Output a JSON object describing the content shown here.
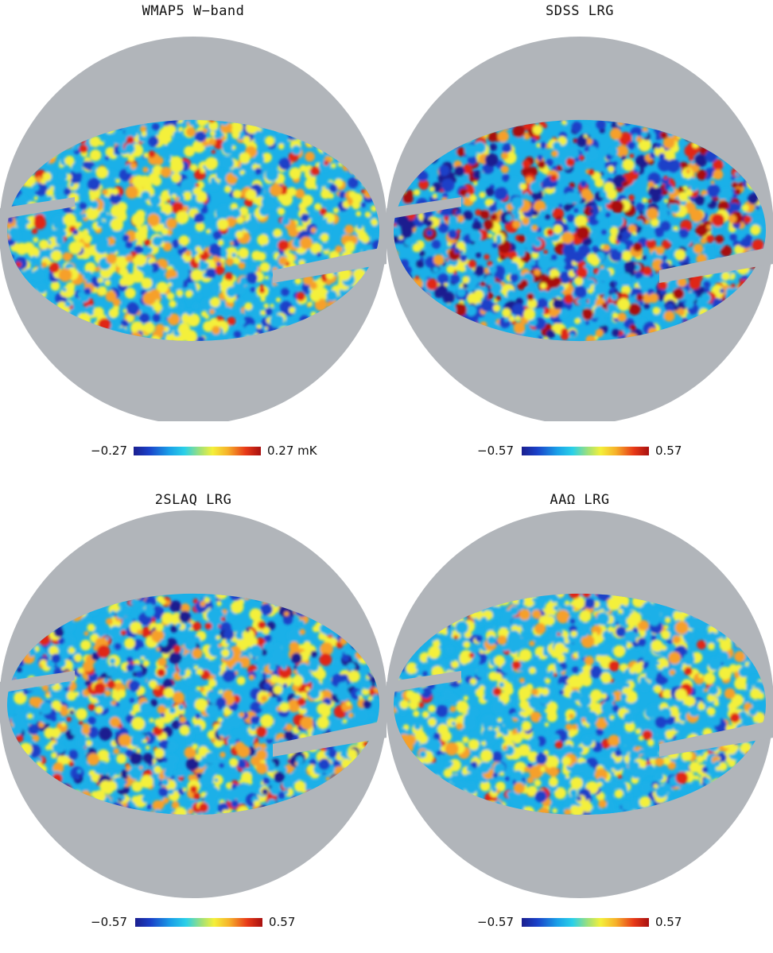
{
  "panels": [
    {
      "title": "WMAP5 W−band",
      "cb_min": "−0.27",
      "cb_max": "0.27 mK",
      "seed": 11,
      "palette": "cmb"
    },
    {
      "title": "SDSS LRG",
      "cb_min": "−0.57",
      "cb_max": "0.57",
      "seed": 23,
      "palette": "strong"
    },
    {
      "title": "2SLAQ LRG",
      "cb_min": "−0.57",
      "cb_max": "0.57",
      "seed": 37,
      "palette": "mid"
    },
    {
      "title": "AAΩ LRG",
      "cb_min": "−0.57",
      "cb_max": "0.57",
      "seed": 51,
      "palette": "soft"
    }
  ],
  "colors": {
    "background_disk": "#b1b5ba",
    "map_blue_dark": "#1b1f8f",
    "map_blue": "#1a40c8",
    "map_cyan": "#1ab0e8",
    "map_yellow": "#f4f03a",
    "map_orange": "#f6a02a",
    "map_red": "#e02818",
    "map_dark_red": "#a81010"
  }
}
